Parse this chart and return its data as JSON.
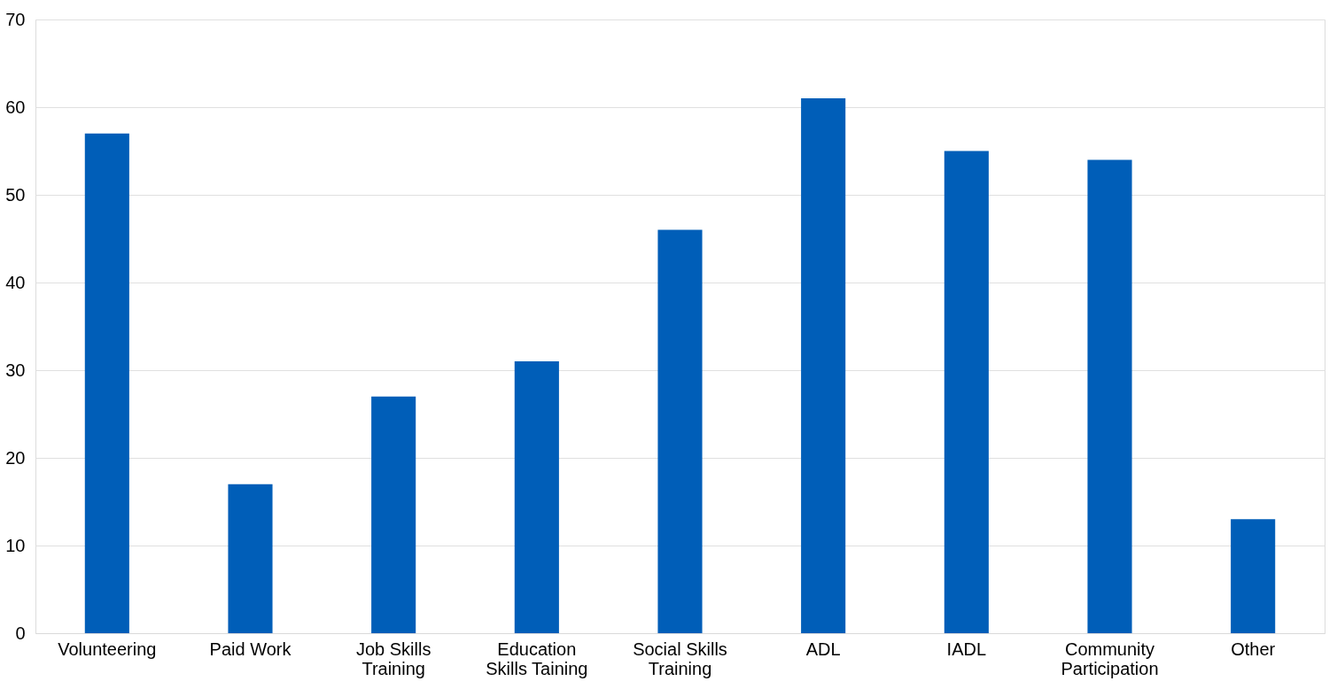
{
  "chart_data": {
    "type": "bar",
    "categories": [
      "Volunteering",
      "Paid Work",
      "Job Skills Training",
      "Education Skills Taining",
      "Social Skills Training",
      "ADL",
      "IADL",
      "Community Participation",
      "Other"
    ],
    "values": [
      57,
      17,
      27,
      31,
      46,
      61,
      55,
      54,
      13
    ],
    "color": "#005eb8",
    "ylim": [
      0,
      70
    ],
    "yticks": [
      0,
      10,
      20,
      30,
      40,
      50,
      60,
      70
    ],
    "grid": "y"
  }
}
